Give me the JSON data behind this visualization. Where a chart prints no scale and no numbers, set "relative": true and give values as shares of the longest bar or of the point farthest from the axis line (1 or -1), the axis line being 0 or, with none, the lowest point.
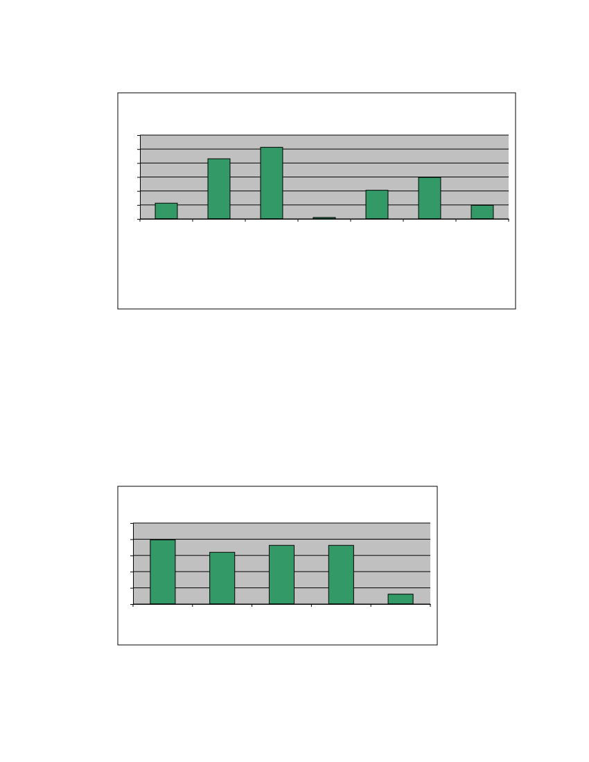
{
  "chart_data": [
    {
      "type": "bar",
      "relative": true,
      "categories": [
        null,
        null,
        null,
        null,
        null,
        null,
        null
      ],
      "values": [
        0.22,
        0.84,
        1,
        0.02,
        0.4,
        0.58,
        0.19
      ],
      "color": "#339966",
      "grid": "y"
    },
    {
      "type": "bar",
      "relative": true,
      "categories": [
        null,
        null,
        null,
        null,
        null
      ],
      "values": [
        1,
        0.806,
        0.914,
        0.914,
        0.154
      ],
      "color": "#339966",
      "grid": "y"
    }
  ]
}
